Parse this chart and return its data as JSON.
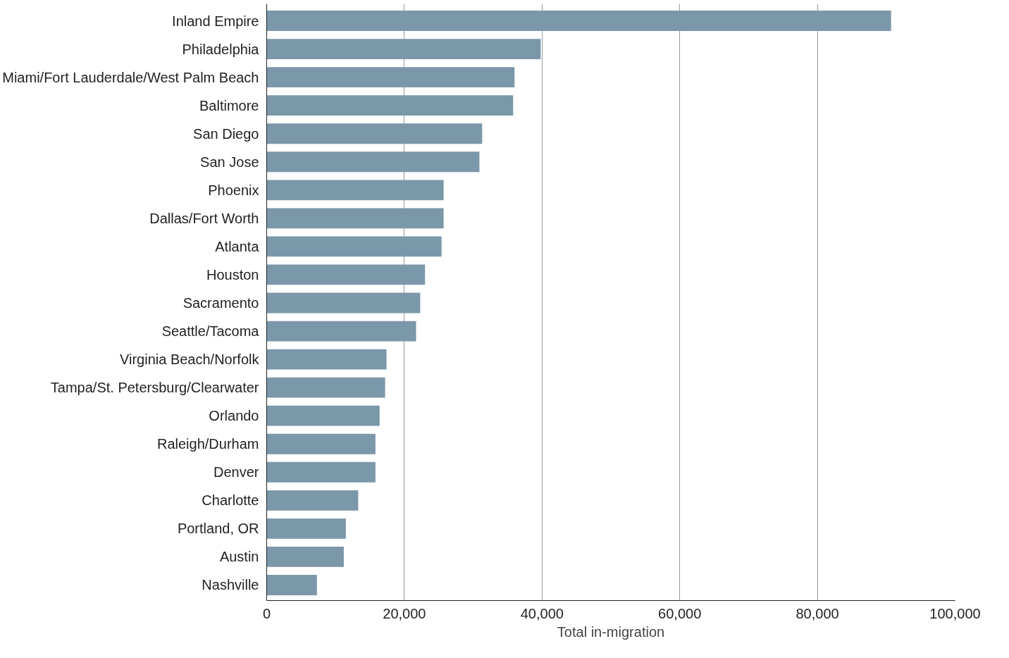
{
  "chart_data": {
    "type": "bar",
    "orientation": "horizontal",
    "xlabel": "Total in-migration",
    "categories": [
      "Inland Empire",
      "Philadelphia",
      "Miami/Fort Lauderdale/West Palm Beach",
      "Baltimore",
      "San Diego",
      "San Jose",
      "Phoenix",
      "Dallas/Fort Worth",
      "Atlanta",
      "Houston",
      "Sacramento",
      "Seattle/Tacoma",
      "Virginia Beach/Norfolk",
      "Tampa/St. Petersburg/Clearwater",
      "Orlando",
      "Raleigh/Durham",
      "Denver",
      "Charlotte",
      "Portland, OR",
      "Austin",
      "Nashville"
    ],
    "values": [
      90700,
      39800,
      36000,
      35800,
      31300,
      30900,
      25700,
      25700,
      25400,
      23000,
      22300,
      21700,
      17400,
      17200,
      16400,
      15800,
      15800,
      13300,
      11500,
      11200,
      7300
    ],
    "color": "#7b97aa",
    "xlim": [
      0,
      100000
    ],
    "xticks": [
      0,
      {
        "value": 20000,
        "label": "20,000"
      },
      {
        "value": 40000,
        "label": "40,000"
      },
      {
        "value": 60000,
        "label": "60,000"
      },
      {
        "value": 80000,
        "label": "80,000"
      },
      {
        "value": 100000,
        "label": "100,000"
      }
    ],
    "grid": "x"
  }
}
